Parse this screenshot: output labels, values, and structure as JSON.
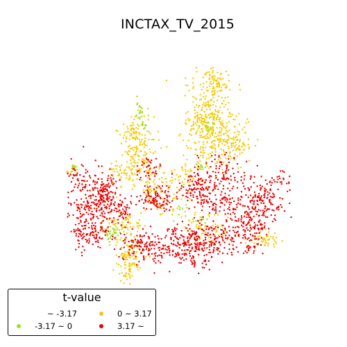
{
  "title": "INCTAX_TV_2015",
  "legend": {
    "title": "t-value",
    "items": [
      {
        "label": "~ -3.17",
        "color": "#2b7bc9",
        "shown": false
      },
      {
        "label": "-3.17 ~ 0",
        "color": "#9be31e"
      },
      {
        "label": "0 ~ 3.17",
        "color": "#f5c900"
      },
      {
        "label": "3.17 ~",
        "color": "#e80000"
      }
    ]
  }
}
